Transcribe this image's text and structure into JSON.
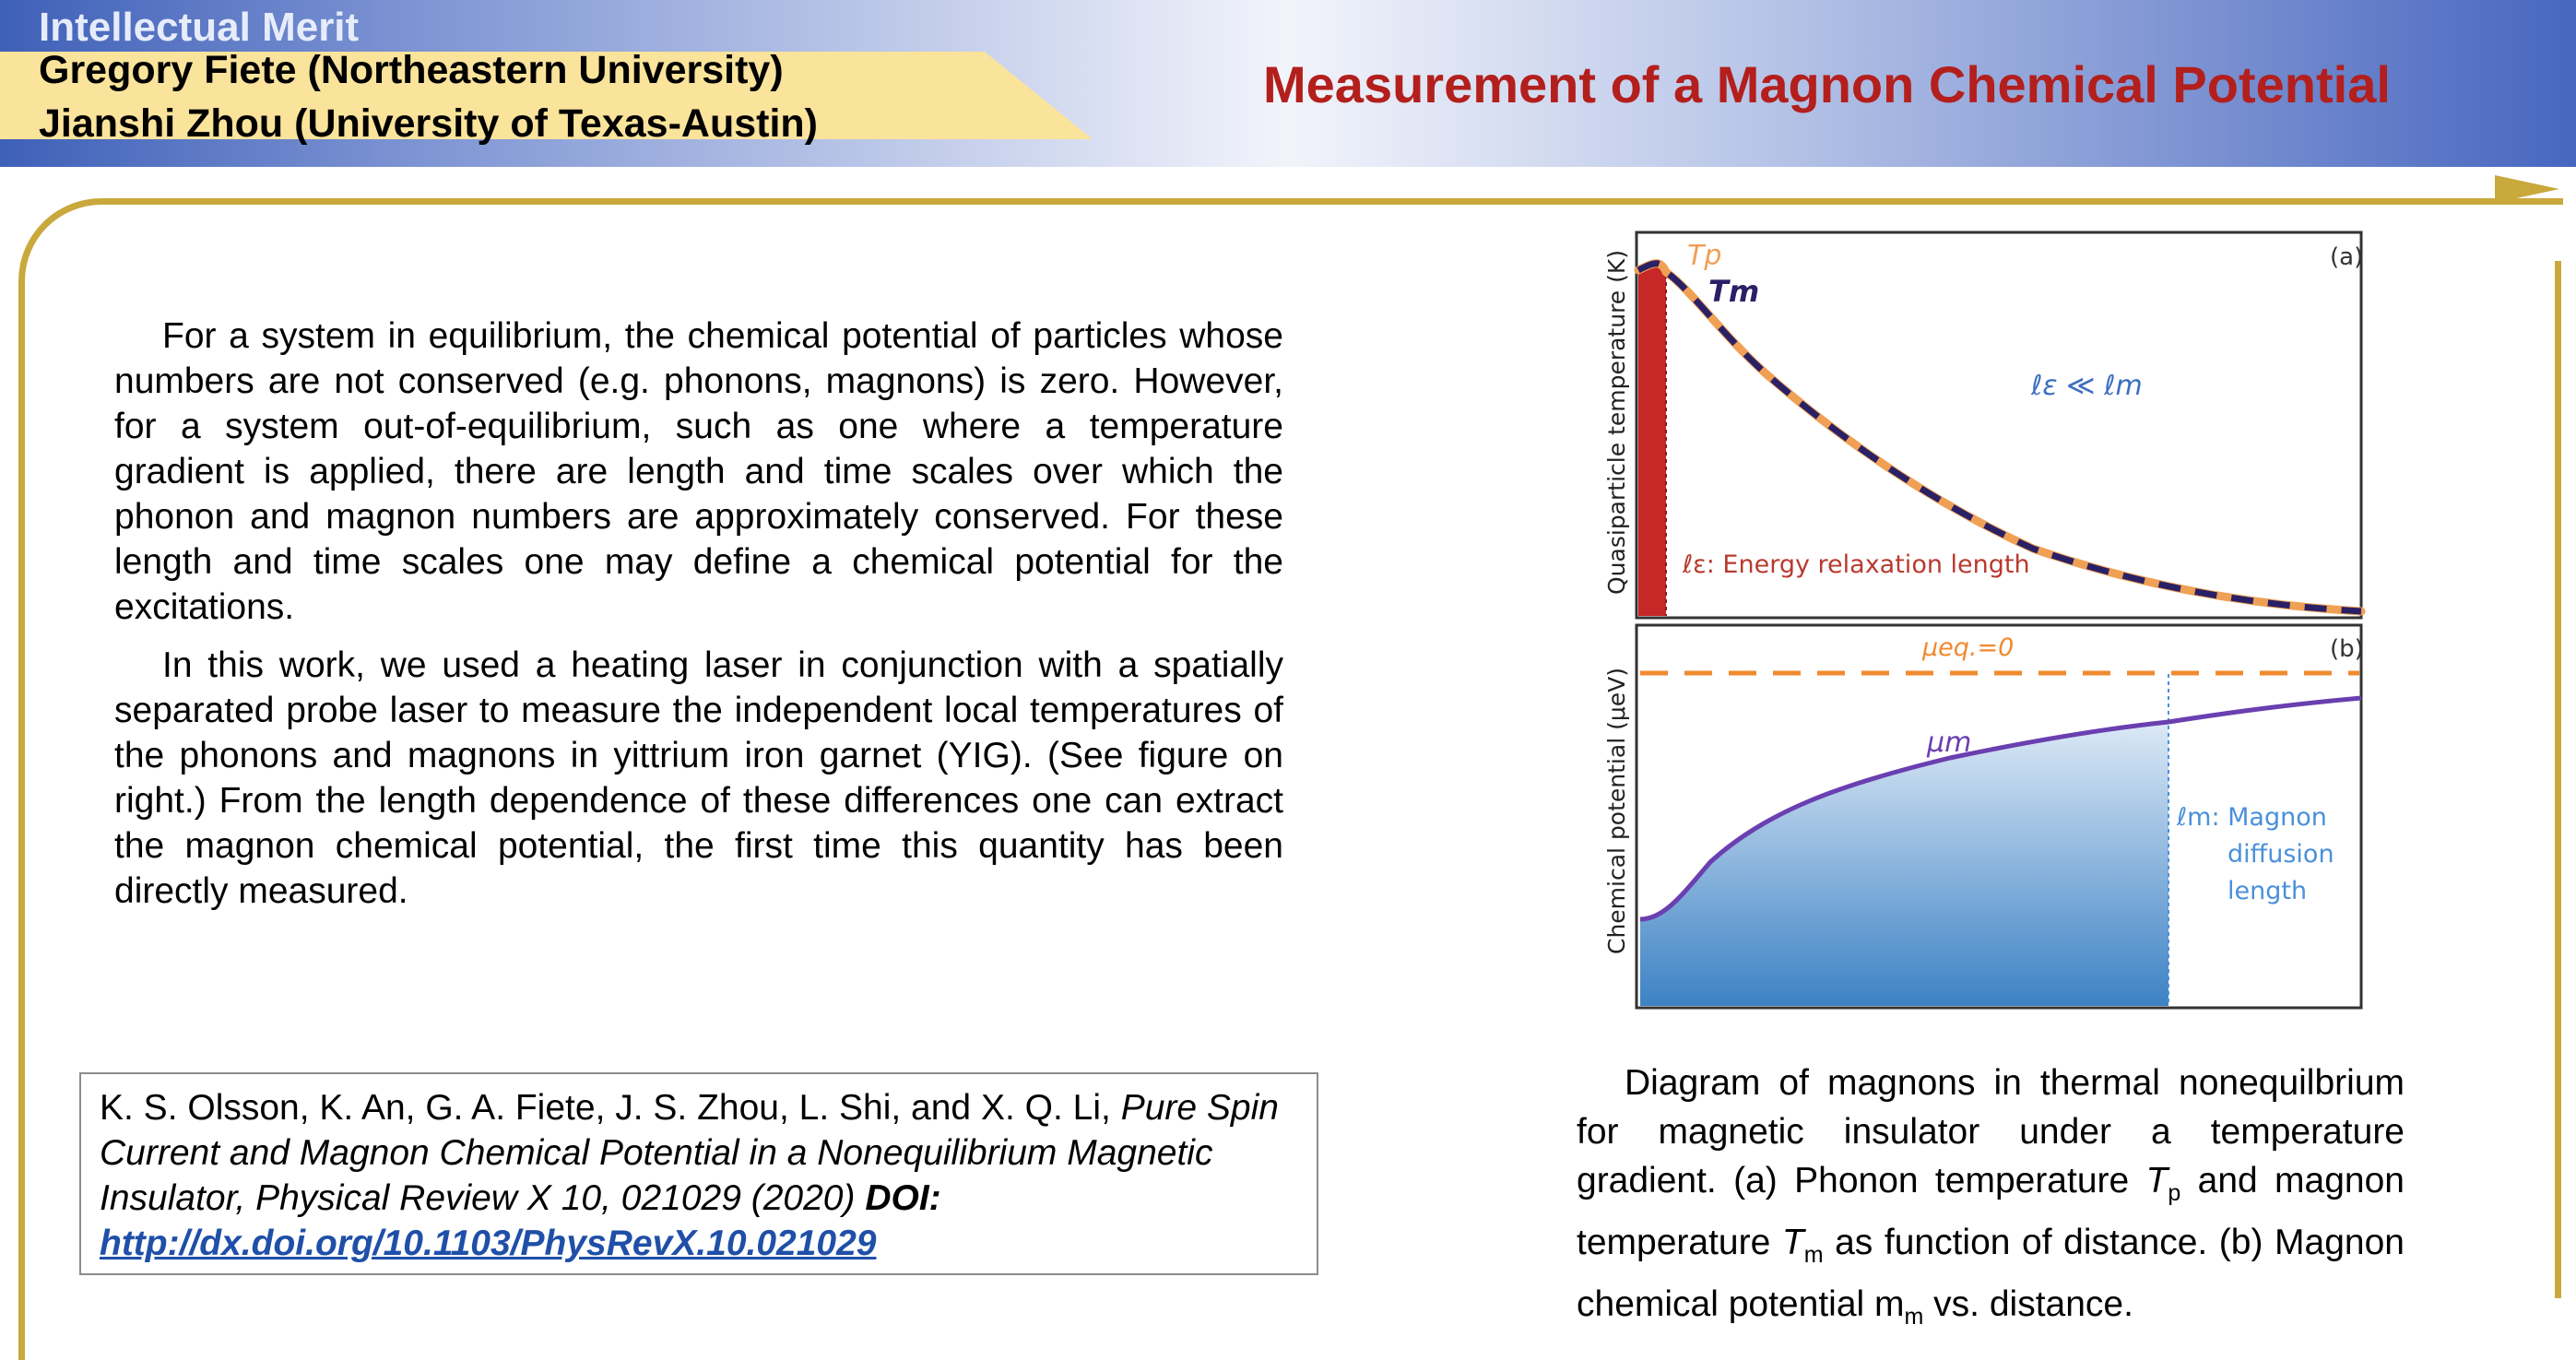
{
  "header": {
    "band_label": "Intellectual Merit",
    "authors": [
      "Gregory Fiete (Northeastern University)",
      "Jianshi Zhou (University of Texas-Austin)"
    ],
    "title": "Measurement of a Magnon Chemical Potential"
  },
  "body": {
    "paragraphs": [
      "For a system in equilibrium, the chemical potential of particles whose numbers are not conserved (e.g. phonons, magnons) is zero. However, for a system out-of-equilibrium, such as one where a temperature gradient is applied, there are length and time scales over which the phonon and magnon numbers are approximately conserved. For these length and time scales one may define a chemical potential for the excitations.",
      "In this work, we used a heating laser in conjunction with a spatially separated probe laser to measure the independent local temperatures of the phonons and magnons in yittrium iron garnet (YIG). (See figure on right.) From the length dependence of these differences one can extract the magnon chemical potential, the first time this quantity has been directly measured."
    ]
  },
  "citation": {
    "authors": "K. S. Olsson, K. An, G. A. Fiete, J. S. Zhou, L. Shi, and X. Q. Li,",
    "title_journal": "Pure Spin Current and Magnon Chemical Potential in a Nonequilibrium Magnetic Insulator, Physical Review X 10, 021029 (2020)",
    "doi_label": "DOI:",
    "doi_url": "http://dx.doi.org/10.1103/PhysRevX.10.021029"
  },
  "figure": {
    "panel_a": {
      "tag": "(a)",
      "ylabel": "Quasiparticle temperature (K)",
      "tp_label": "Tp",
      "tm_label": "Tm",
      "relation": "ℓε ≪ ℓm",
      "relaxation_label": "ℓε: Energy relaxation length"
    },
    "panel_b": {
      "tag": "(b)",
      "ylabel": "Chemical potential (μeV)",
      "eq_label": "μeq.=0",
      "mu_label": "μm",
      "diffusion_label": [
        "ℓm: Magnon",
        "diffusion",
        "length"
      ]
    },
    "colors": {
      "tp": "#f0a055",
      "tm": "#2a2066",
      "mu_line": "#6a3fb0",
      "eq_dash": "#f08a30",
      "fill_top": "#dce9f6",
      "fill_bottom": "#3d82c5",
      "relax_bar": "#c62828",
      "annotation": "#4a90d9"
    }
  },
  "caption": {
    "lead": "Diagram of magnons in thermal nonequilbrium for magnetic insulator under a temperature gradient. (a) Phonon temperature",
    "tp_sym": "T",
    "tp_sub": "p",
    "mid": "and magnon temperature",
    "tm_sym": "T",
    "tm_sub": "m",
    "after_tm": "as function of distance. (b) Magnon chemical potential m",
    "mu_sub": "m",
    "end": "vs. distance."
  }
}
